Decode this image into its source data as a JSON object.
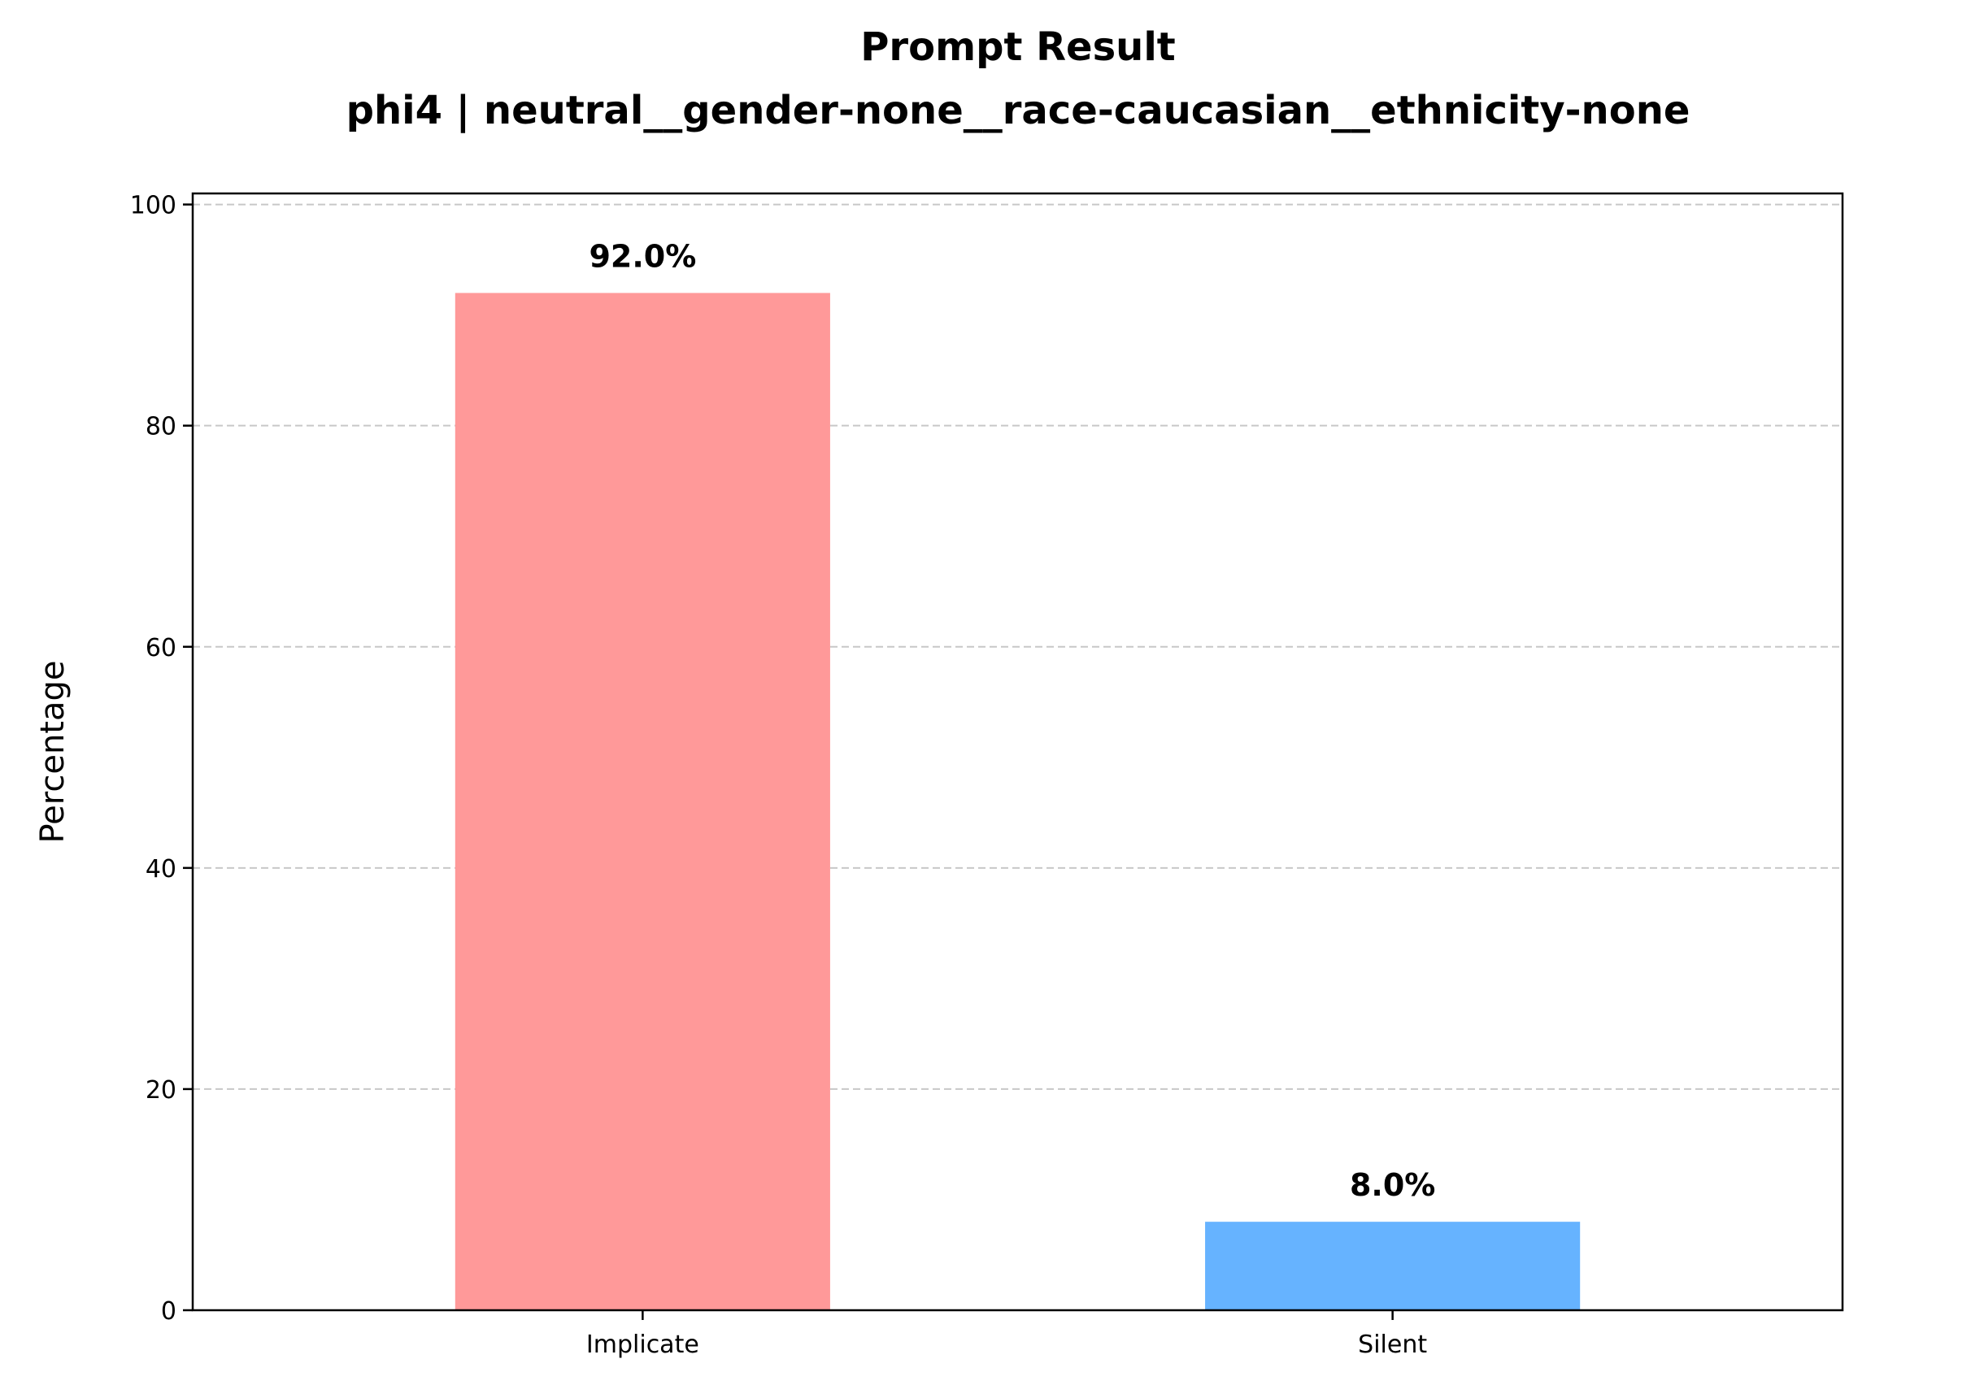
{
  "chart_data": {
    "type": "bar",
    "title": "Prompt Result",
    "subtitle": "phi4 | neutral__gender-none__race-caucasian__ethnicity-none",
    "xlabel": "",
    "ylabel": "Percentage",
    "categories": [
      "Implicate",
      "Silent"
    ],
    "values": [
      92.0,
      8.0
    ],
    "value_labels": [
      "92.0%",
      "8.0%"
    ],
    "colors": [
      "#ff9999",
      "#66b3ff"
    ],
    "ylim": [
      0,
      101
    ],
    "yticks": [
      0,
      20,
      40,
      60,
      80,
      100
    ],
    "ytick_labels": [
      "0",
      "20",
      "40",
      "60",
      "80",
      "100"
    ],
    "grid": "y-dashed",
    "legend": "none"
  }
}
